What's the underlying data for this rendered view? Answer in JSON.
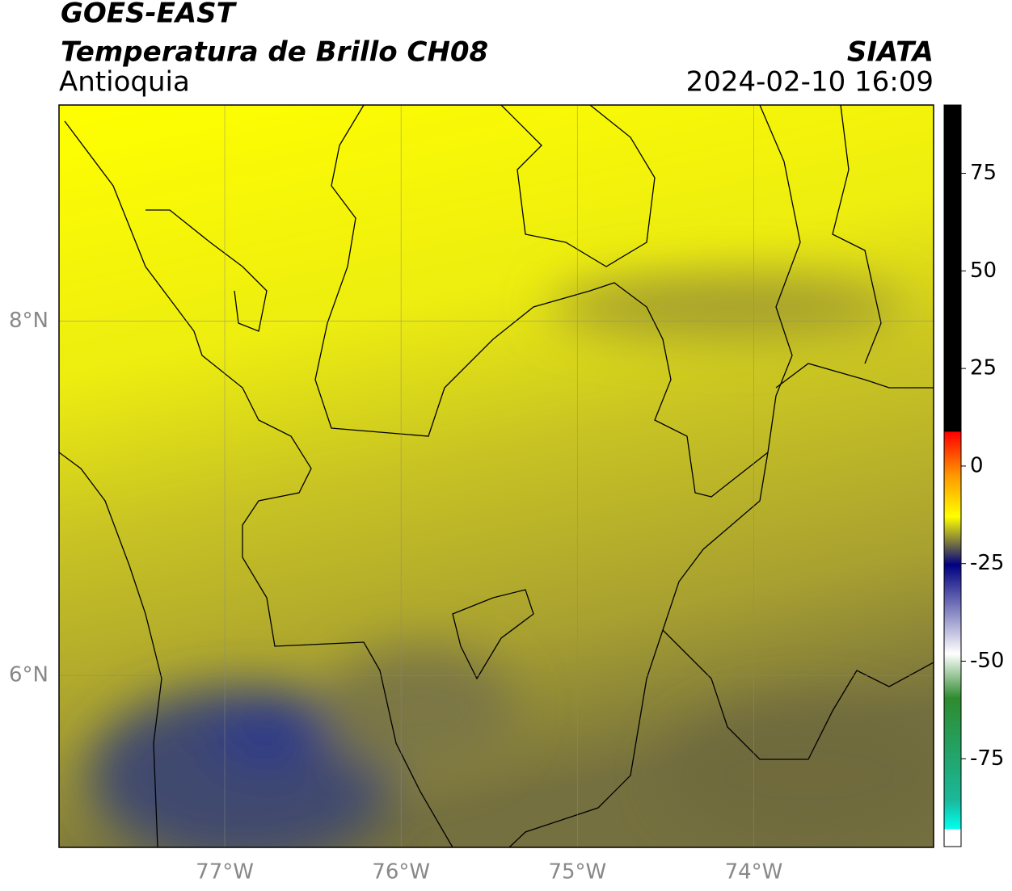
{
  "header": {
    "source": "GOES-EAST",
    "title": "Temperatura de Brillo CH08",
    "region": "Antioquia",
    "agency": "SIATA",
    "timestamp": "2024-02-10 16:09"
  },
  "map": {
    "lonlim": [
      -77.94,
      -72.98
    ],
    "latlim": [
      5.03,
      9.22
    ],
    "lonticks": [
      {
        "value": -77,
        "label": "77°W"
      },
      {
        "value": -76,
        "label": "76°W"
      },
      {
        "value": -75,
        "label": "75°W"
      },
      {
        "value": -74,
        "label": "74°W"
      }
    ],
    "latticks": [
      {
        "value": 8,
        "label": "8°N"
      },
      {
        "value": 6,
        "label": "6°N"
      }
    ]
  },
  "colorbar": {
    "lim": [
      -97.5,
      92.5
    ],
    "ticks": [
      75,
      50,
      25,
      0,
      -25,
      -50,
      -75
    ]
  }
}
